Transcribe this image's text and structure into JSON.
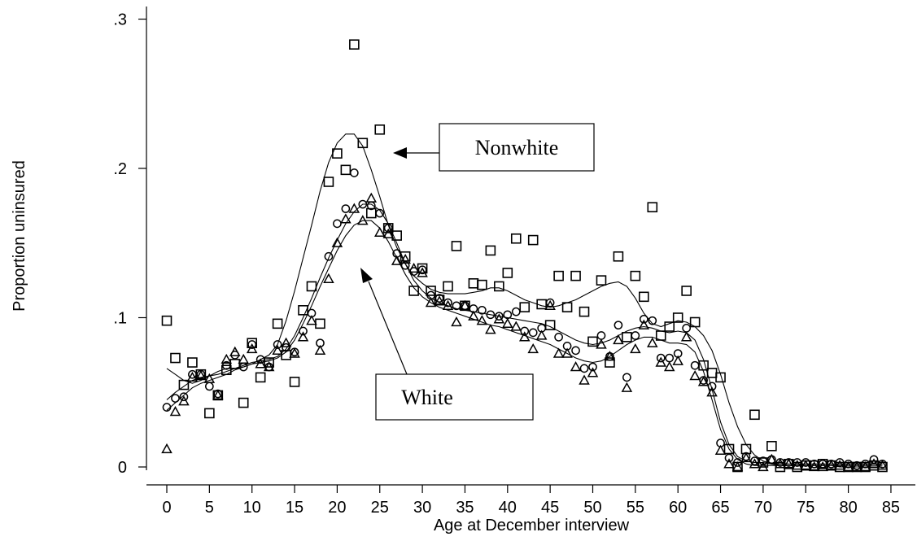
{
  "chart_data": {
    "type": "scatter",
    "xlabel": "Age at December interview",
    "ylabel": "Proportion uninsured",
    "xlim": [
      -2,
      87
    ],
    "ylim": [
      -0.012,
      0.305
    ],
    "xticks": [
      0,
      5,
      10,
      15,
      20,
      25,
      30,
      35,
      40,
      45,
      50,
      55,
      60,
      65,
      70,
      75,
      80,
      85
    ],
    "xtick_labels": [
      "0",
      "5",
      "10",
      "15",
      "20",
      "25",
      "30",
      "35",
      "40",
      "45",
      "50",
      "55",
      "60",
      "65",
      "70",
      "75",
      "80",
      "85"
    ],
    "yticks": [
      0,
      0.1,
      0.2,
      0.3
    ],
    "ytick_labels": [
      "0",
      ".1",
      ".2",
      ".3"
    ],
    "grid": false,
    "legend": "none",
    "series": [
      {
        "marker": "square",
        "x": [
          0,
          1,
          2,
          3,
          4,
          5,
          6,
          7,
          8,
          9,
          10,
          11,
          12,
          13,
          14,
          15,
          16,
          17,
          18,
          19,
          20,
          21,
          22,
          23,
          24,
          25,
          26,
          27,
          28,
          29,
          30,
          31,
          32,
          33,
          34,
          35,
          36,
          37,
          38,
          39,
          40,
          41,
          42,
          43,
          44,
          45,
          46,
          47,
          48,
          49,
          50,
          51,
          52,
          53,
          54,
          55,
          56,
          57,
          58,
          59,
          60,
          61,
          62,
          63,
          64,
          65,
          66,
          67,
          68,
          69,
          70,
          71,
          72,
          73,
          74,
          75,
          76,
          77,
          78,
          79,
          80,
          81,
          82,
          83,
          84
        ],
        "values": [
          0.098,
          0.073,
          0.055,
          0.07,
          0.062,
          0.036,
          0.048,
          0.065,
          0.069,
          0.043,
          0.083,
          0.06,
          0.07,
          0.096,
          0.075,
          0.057,
          0.105,
          0.121,
          0.096,
          0.191,
          0.21,
          0.199,
          0.283,
          0.217,
          0.17,
          0.226,
          0.16,
          0.155,
          0.141,
          0.118,
          0.133,
          0.118,
          0.112,
          0.121,
          0.148,
          0.108,
          0.123,
          0.122,
          0.145,
          0.121,
          0.13,
          0.153,
          0.107,
          0.152,
          0.109,
          0.095,
          0.128,
          0.107,
          0.128,
          0.104,
          0.084,
          0.125,
          0.07,
          0.141,
          0.087,
          0.128,
          0.114,
          0.174,
          0.088,
          0.094,
          0.1,
          0.118,
          0.097,
          0.068,
          0.063,
          0.06,
          0.012,
          0.0,
          0.012,
          0.035,
          0.003,
          0.014,
          0.0,
          0.002,
          0.0,
          0.001,
          0.001,
          0.002,
          0.001,
          0.0,
          0.0,
          0.0,
          0.0,
          0.001,
          0.0
        ],
        "fit": [
          0.066,
          0.062,
          0.058,
          0.056,
          0.058,
          0.061,
          0.064,
          0.066,
          0.066,
          0.067,
          0.069,
          0.072,
          0.075,
          0.082,
          0.098,
          0.118,
          0.14,
          0.162,
          0.185,
          0.204,
          0.217,
          0.223,
          0.223,
          0.215,
          0.199,
          0.181,
          0.162,
          0.147,
          0.136,
          0.128,
          0.123,
          0.119,
          0.117,
          0.116,
          0.116,
          0.116,
          0.117,
          0.118,
          0.12,
          0.12,
          0.118,
          0.115,
          0.112,
          0.11,
          0.108,
          0.107,
          0.108,
          0.11,
          0.112,
          0.115,
          0.118,
          0.121,
          0.123,
          0.124,
          0.121,
          0.113,
          0.103,
          0.096,
          0.094,
          0.096,
          0.098,
          0.097,
          0.094,
          0.088,
          0.078,
          0.062,
          0.043,
          0.027,
          0.015,
          0.008,
          0.004,
          0.002,
          0.001,
          0.001,
          0.001,
          0.001,
          0.001,
          0.001,
          0.001,
          0.0,
          0.0,
          0.0,
          0.0,
          0.0,
          0.0
        ]
      },
      {
        "marker": "circle",
        "x": [
          0,
          1,
          2,
          3,
          4,
          5,
          6,
          7,
          8,
          9,
          10,
          11,
          12,
          13,
          14,
          15,
          16,
          17,
          18,
          19,
          20,
          21,
          22,
          23,
          24,
          25,
          26,
          27,
          28,
          29,
          30,
          31,
          32,
          33,
          34,
          35,
          36,
          37,
          38,
          39,
          40,
          41,
          42,
          43,
          44,
          45,
          46,
          47,
          48,
          49,
          50,
          51,
          52,
          53,
          54,
          55,
          56,
          57,
          58,
          59,
          60,
          61,
          62,
          63,
          64,
          65,
          66,
          67,
          68,
          69,
          70,
          71,
          72,
          73,
          74,
          75,
          76,
          77,
          78,
          79,
          80,
          81,
          82,
          83,
          84
        ],
        "values": [
          0.04,
          0.046,
          0.047,
          0.062,
          0.062,
          0.054,
          0.049,
          0.068,
          0.075,
          0.067,
          0.082,
          0.072,
          0.067,
          0.082,
          0.08,
          0.077,
          0.091,
          0.103,
          0.083,
          0.141,
          0.163,
          0.173,
          0.197,
          0.176,
          0.175,
          0.17,
          0.16,
          0.143,
          0.135,
          0.131,
          0.132,
          0.115,
          0.113,
          0.11,
          0.108,
          0.108,
          0.106,
          0.105,
          0.102,
          0.101,
          0.102,
          0.104,
          0.091,
          0.09,
          0.093,
          0.11,
          0.087,
          0.081,
          0.078,
          0.066,
          0.067,
          0.088,
          0.074,
          0.095,
          0.06,
          0.088,
          0.099,
          0.098,
          0.073,
          0.073,
          0.076,
          0.093,
          0.068,
          0.058,
          0.054,
          0.016,
          0.006,
          0.003,
          0.007,
          0.004,
          0.004,
          0.005,
          0.003,
          0.003,
          0.003,
          0.003,
          0.002,
          0.002,
          0.002,
          0.003,
          0.002,
          0.001,
          0.002,
          0.005,
          0.002
        ],
        "fit": [
          0.045,
          0.05,
          0.054,
          0.058,
          0.06,
          0.061,
          0.062,
          0.064,
          0.066,
          0.068,
          0.07,
          0.071,
          0.072,
          0.074,
          0.079,
          0.088,
          0.1,
          0.113,
          0.127,
          0.14,
          0.152,
          0.163,
          0.171,
          0.176,
          0.176,
          0.172,
          0.163,
          0.15,
          0.136,
          0.125,
          0.118,
          0.113,
          0.11,
          0.108,
          0.106,
          0.105,
          0.104,
          0.103,
          0.102,
          0.101,
          0.1,
          0.099,
          0.098,
          0.097,
          0.096,
          0.094,
          0.091,
          0.088,
          0.085,
          0.083,
          0.082,
          0.083,
          0.085,
          0.088,
          0.091,
          0.093,
          0.094,
          0.093,
          0.091,
          0.09,
          0.091,
          0.09,
          0.085,
          0.072,
          0.052,
          0.03,
          0.015,
          0.007,
          0.004,
          0.003,
          0.003,
          0.002,
          0.002,
          0.002,
          0.002,
          0.002,
          0.002,
          0.002,
          0.002,
          0.002,
          0.002,
          0.002,
          0.002,
          0.002,
          0.002
        ]
      },
      {
        "marker": "triangle",
        "x": [
          0,
          1,
          2,
          3,
          4,
          5,
          6,
          7,
          8,
          9,
          10,
          11,
          12,
          13,
          14,
          15,
          16,
          17,
          18,
          19,
          20,
          21,
          22,
          23,
          24,
          25,
          26,
          27,
          28,
          29,
          30,
          31,
          32,
          33,
          34,
          35,
          36,
          37,
          38,
          39,
          40,
          41,
          42,
          43,
          44,
          45,
          46,
          47,
          48,
          49,
          50,
          51,
          52,
          53,
          54,
          55,
          56,
          57,
          58,
          59,
          60,
          61,
          62,
          63,
          64,
          65,
          66,
          67,
          68,
          69,
          70,
          71,
          72,
          73,
          74,
          75,
          76,
          77,
          78,
          79,
          80,
          81,
          82,
          83,
          84
        ],
        "values": [
          0.012,
          0.037,
          0.044,
          0.06,
          0.061,
          0.059,
          0.048,
          0.072,
          0.077,
          0.072,
          0.079,
          0.069,
          0.067,
          0.078,
          0.083,
          0.076,
          0.087,
          0.098,
          0.078,
          0.126,
          0.15,
          0.166,
          0.173,
          0.165,
          0.18,
          0.157,
          0.156,
          0.138,
          0.139,
          0.133,
          0.13,
          0.11,
          0.111,
          0.108,
          0.097,
          0.108,
          0.101,
          0.098,
          0.092,
          0.099,
          0.096,
          0.094,
          0.087,
          0.079,
          0.088,
          0.108,
          0.076,
          0.076,
          0.067,
          0.058,
          0.063,
          0.082,
          0.074,
          0.085,
          0.053,
          0.079,
          0.095,
          0.083,
          0.07,
          0.067,
          0.071,
          0.087,
          0.061,
          0.057,
          0.05,
          0.011,
          0.002,
          0.0,
          0.006,
          0.002,
          0.0,
          0.005,
          0.002,
          0.002,
          0.001,
          0.001,
          0.0,
          0.0,
          0.001,
          0.001,
          0.0,
          0.0,
          0.0,
          0.002,
          0.001
        ],
        "fit": [
          0.038,
          0.043,
          0.048,
          0.053,
          0.056,
          0.058,
          0.06,
          0.062,
          0.065,
          0.067,
          0.069,
          0.07,
          0.071,
          0.073,
          0.077,
          0.085,
          0.096,
          0.108,
          0.121,
          0.133,
          0.145,
          0.155,
          0.162,
          0.165,
          0.165,
          0.16,
          0.151,
          0.14,
          0.129,
          0.12,
          0.114,
          0.11,
          0.107,
          0.105,
          0.103,
          0.101,
          0.099,
          0.097,
          0.095,
          0.094,
          0.092,
          0.09,
          0.088,
          0.086,
          0.084,
          0.082,
          0.079,
          0.076,
          0.073,
          0.071,
          0.07,
          0.071,
          0.074,
          0.078,
          0.082,
          0.085,
          0.087,
          0.087,
          0.085,
          0.083,
          0.083,
          0.082,
          0.077,
          0.064,
          0.045,
          0.025,
          0.012,
          0.005,
          0.002,
          0.001,
          0.001,
          0.001,
          0.001,
          0.001,
          0.001,
          0.001,
          0.001,
          0.001,
          0.001,
          0.001,
          0.001,
          0.001,
          0.001,
          0.001,
          0.001
        ]
      }
    ],
    "annotations": [
      {
        "text": "Nonwhite",
        "points_to_series": 0,
        "arrow_target": [
          24.5,
          0.21
        ]
      },
      {
        "text": "White",
        "points_to_series": 2,
        "arrow_target": [
          23,
          0.132
        ]
      }
    ]
  }
}
